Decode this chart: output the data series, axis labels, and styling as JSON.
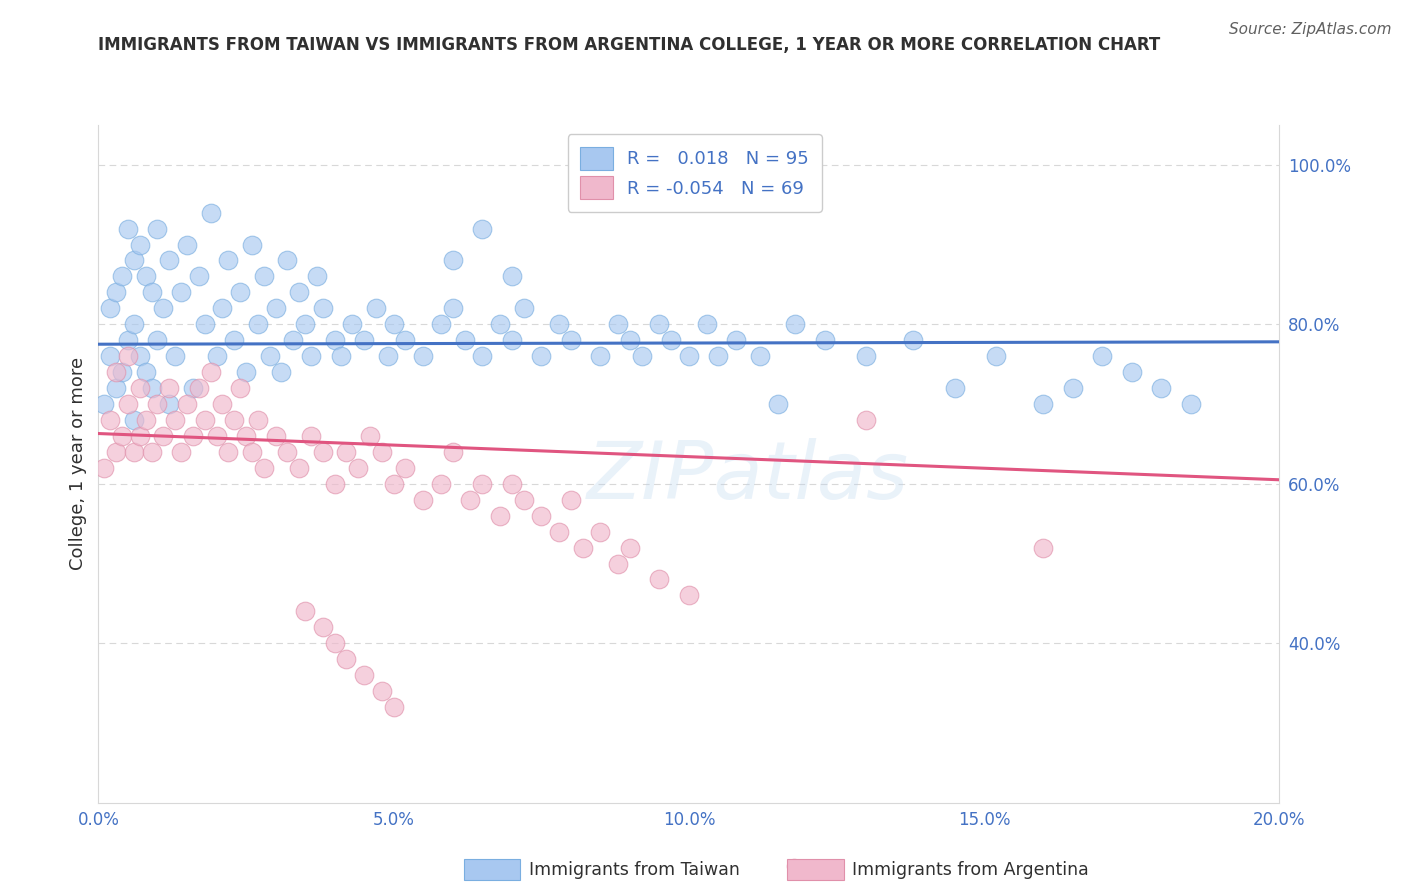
{
  "title": "IMMIGRANTS FROM TAIWAN VS IMMIGRANTS FROM ARGENTINA COLLEGE, 1 YEAR OR MORE CORRELATION CHART",
  "source": "Source: ZipAtlas.com",
  "ylabel": "College, 1 year or more",
  "xlim": [
    0.0,
    0.2
  ],
  "ylim": [
    0.2,
    1.05
  ],
  "yticks": [
    0.4,
    0.6,
    0.8,
    1.0
  ],
  "ytick_labels": [
    "40.0%",
    "60.0%",
    "80.0%",
    "100.0%"
  ],
  "xticks": [
    0.0,
    0.05,
    0.1,
    0.15,
    0.2
  ],
  "xtick_labels": [
    "0.0%",
    "5.0%",
    "10.0%",
    "15.0%",
    "20.0%"
  ],
  "taiwan_color": "#a8c8f0",
  "taiwan_edge_color": "#7aaee0",
  "argentina_color": "#f0b8cc",
  "argentina_edge_color": "#e090aa",
  "taiwan_line_color": "#4472c4",
  "argentina_line_color": "#e05580",
  "taiwan_R": 0.018,
  "taiwan_N": 95,
  "argentina_R": -0.054,
  "argentina_N": 69,
  "taiwan_trendline_x": [
    0.0,
    0.2
  ],
  "taiwan_trendline_y": [
    0.775,
    0.778
  ],
  "argentina_trendline_x": [
    0.0,
    0.2
  ],
  "argentina_trendline_y": [
    0.663,
    0.605
  ],
  "watermark": "ZIPatlas",
  "legend_taiwan_label": "Immigrants from Taiwan",
  "legend_argentina_label": "Immigrants from Argentina",
  "title_color": "#303030",
  "source_color": "#606060",
  "label_color": "#4472c4",
  "grid_color": "#d8d8d8",
  "background_color": "#ffffff",
  "taiwan_scatter_x": [
    0.001,
    0.002,
    0.002,
    0.003,
    0.003,
    0.004,
    0.004,
    0.005,
    0.005,
    0.006,
    0.006,
    0.006,
    0.007,
    0.007,
    0.008,
    0.008,
    0.009,
    0.009,
    0.01,
    0.01,
    0.011,
    0.012,
    0.012,
    0.013,
    0.014,
    0.015,
    0.016,
    0.017,
    0.018,
    0.019,
    0.02,
    0.021,
    0.022,
    0.023,
    0.024,
    0.025,
    0.026,
    0.027,
    0.028,
    0.029,
    0.03,
    0.031,
    0.032,
    0.033,
    0.034,
    0.035,
    0.036,
    0.037,
    0.038,
    0.04,
    0.041,
    0.043,
    0.045,
    0.047,
    0.049,
    0.05,
    0.052,
    0.055,
    0.058,
    0.06,
    0.062,
    0.065,
    0.068,
    0.07,
    0.072,
    0.075,
    0.078,
    0.08,
    0.085,
    0.088,
    0.09,
    0.092,
    0.095,
    0.097,
    0.1,
    0.103,
    0.108,
    0.112,
    0.118,
    0.123,
    0.13,
    0.138,
    0.145,
    0.152,
    0.16,
    0.165,
    0.17,
    0.175,
    0.18,
    0.185,
    0.06,
    0.065,
    0.07,
    0.105,
    0.115
  ],
  "taiwan_scatter_y": [
    0.7,
    0.76,
    0.82,
    0.72,
    0.84,
    0.74,
    0.86,
    0.78,
    0.92,
    0.68,
    0.8,
    0.88,
    0.76,
    0.9,
    0.74,
    0.86,
    0.72,
    0.84,
    0.78,
    0.92,
    0.82,
    0.7,
    0.88,
    0.76,
    0.84,
    0.9,
    0.72,
    0.86,
    0.8,
    0.94,
    0.76,
    0.82,
    0.88,
    0.78,
    0.84,
    0.74,
    0.9,
    0.8,
    0.86,
    0.76,
    0.82,
    0.74,
    0.88,
    0.78,
    0.84,
    0.8,
    0.76,
    0.86,
    0.82,
    0.78,
    0.76,
    0.8,
    0.78,
    0.82,
    0.76,
    0.8,
    0.78,
    0.76,
    0.8,
    0.82,
    0.78,
    0.76,
    0.8,
    0.78,
    0.82,
    0.76,
    0.8,
    0.78,
    0.76,
    0.8,
    0.78,
    0.76,
    0.8,
    0.78,
    0.76,
    0.8,
    0.78,
    0.76,
    0.8,
    0.78,
    0.76,
    0.78,
    0.72,
    0.76,
    0.7,
    0.72,
    0.76,
    0.74,
    0.72,
    0.7,
    0.88,
    0.92,
    0.86,
    0.76,
    0.7
  ],
  "argentina_scatter_x": [
    0.001,
    0.002,
    0.003,
    0.003,
    0.004,
    0.005,
    0.005,
    0.006,
    0.007,
    0.007,
    0.008,
    0.009,
    0.01,
    0.011,
    0.012,
    0.013,
    0.014,
    0.015,
    0.016,
    0.017,
    0.018,
    0.019,
    0.02,
    0.021,
    0.022,
    0.023,
    0.024,
    0.025,
    0.026,
    0.027,
    0.028,
    0.03,
    0.032,
    0.034,
    0.036,
    0.038,
    0.04,
    0.042,
    0.044,
    0.046,
    0.048,
    0.05,
    0.052,
    0.055,
    0.058,
    0.06,
    0.063,
    0.065,
    0.068,
    0.07,
    0.072,
    0.075,
    0.078,
    0.08,
    0.082,
    0.085,
    0.088,
    0.09,
    0.095,
    0.1,
    0.035,
    0.038,
    0.04,
    0.042,
    0.045,
    0.048,
    0.05,
    0.16,
    0.13
  ],
  "argentina_scatter_y": [
    0.62,
    0.68,
    0.64,
    0.74,
    0.66,
    0.7,
    0.76,
    0.64,
    0.72,
    0.66,
    0.68,
    0.64,
    0.7,
    0.66,
    0.72,
    0.68,
    0.64,
    0.7,
    0.66,
    0.72,
    0.68,
    0.74,
    0.66,
    0.7,
    0.64,
    0.68,
    0.72,
    0.66,
    0.64,
    0.68,
    0.62,
    0.66,
    0.64,
    0.62,
    0.66,
    0.64,
    0.6,
    0.64,
    0.62,
    0.66,
    0.64,
    0.6,
    0.62,
    0.58,
    0.6,
    0.64,
    0.58,
    0.6,
    0.56,
    0.6,
    0.58,
    0.56,
    0.54,
    0.58,
    0.52,
    0.54,
    0.5,
    0.52,
    0.48,
    0.46,
    0.44,
    0.42,
    0.4,
    0.38,
    0.36,
    0.34,
    0.32,
    0.52,
    0.68
  ]
}
